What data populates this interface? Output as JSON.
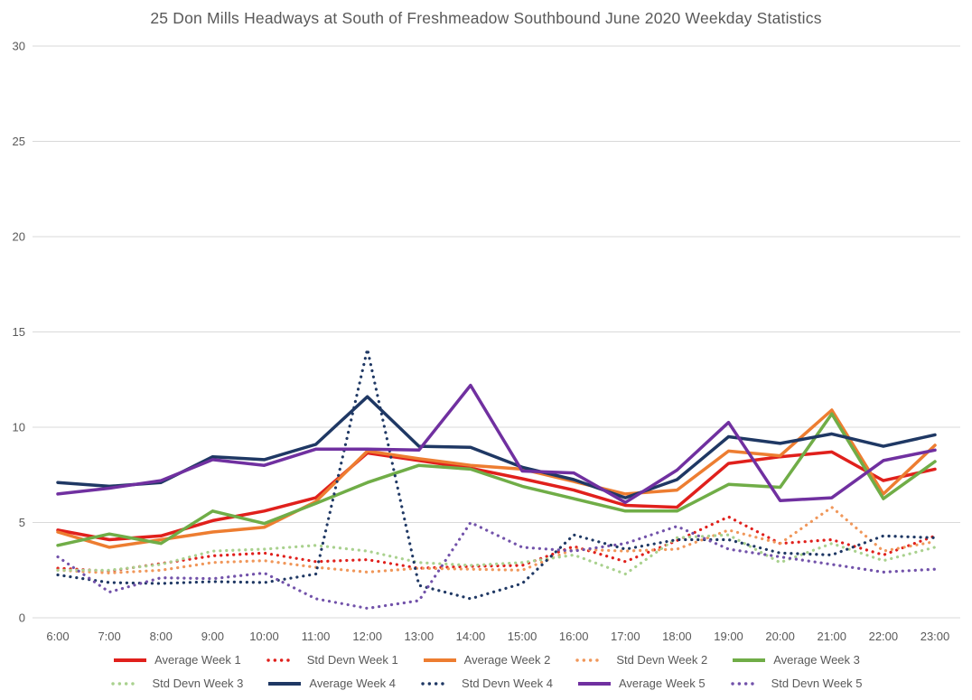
{
  "title": "25 Don Mills Headways at South of Freshmeadow Southbound June 2020 Weekday Statistics",
  "colors": {
    "background": "#ffffff",
    "gridline": "#d9d9d9",
    "axis_text": "#595959",
    "title_text": "#595959"
  },
  "chart_data": {
    "type": "line",
    "title": "25 Don Mills Headways at South of Freshmeadow Southbound June 2020 Weekday Statistics",
    "xlabel": "",
    "ylabel": "",
    "ylim": [
      0,
      30
    ],
    "y_ticks": [
      "0",
      "5",
      "10",
      "15",
      "20",
      "25",
      "30"
    ],
    "grid": "horizontal",
    "legend_position": "bottom",
    "categories": [
      "6:00",
      "7:00",
      "8:00",
      "9:00",
      "10:00",
      "11:00",
      "12:00",
      "13:00",
      "14:00",
      "15:00",
      "16:00",
      "17:00",
      "18:00",
      "19:00",
      "20:00",
      "21:00",
      "22:00",
      "23:00"
    ],
    "series": [
      {
        "name": "Average Week 1",
        "style": "solid",
        "color": "#e0201c",
        "values": [
          4.6,
          4.1,
          4.3,
          5.1,
          5.6,
          6.3,
          8.65,
          8.25,
          7.85,
          7.3,
          6.7,
          5.9,
          5.8,
          8.1,
          8.45,
          8.7,
          7.2,
          7.8
        ]
      },
      {
        "name": "Std Devn Week 1",
        "style": "dotted",
        "color": "#e0201c",
        "values": [
          2.6,
          2.45,
          2.85,
          3.25,
          3.4,
          2.95,
          3.05,
          2.6,
          2.7,
          2.75,
          3.75,
          2.95,
          4.05,
          5.3,
          3.9,
          4.1,
          3.3,
          4.3
        ]
      },
      {
        "name": "Average Week 2",
        "style": "solid",
        "color": "#ed7d31",
        "values": [
          4.5,
          3.7,
          4.1,
          4.5,
          4.75,
          6.1,
          8.75,
          8.35,
          8.0,
          7.8,
          7.15,
          6.5,
          6.7,
          8.75,
          8.5,
          10.9,
          6.5,
          9.05
        ]
      },
      {
        "name": "Std Devn Week 2",
        "style": "dotted",
        "color": "#f0975a",
        "values": [
          2.5,
          2.35,
          2.5,
          2.9,
          3.0,
          2.65,
          2.4,
          2.6,
          2.55,
          2.5,
          3.6,
          3.5,
          3.6,
          4.6,
          3.9,
          5.8,
          3.5,
          4.0
        ]
      },
      {
        "name": "Average Week 3",
        "style": "solid",
        "color": "#70ad47",
        "values": [
          3.8,
          4.4,
          3.9,
          5.6,
          4.95,
          6.0,
          7.1,
          8.0,
          7.8,
          6.9,
          6.25,
          5.6,
          5.6,
          7.0,
          6.85,
          10.7,
          6.25,
          8.2
        ]
      },
      {
        "name": "Std Devn Week 3",
        "style": "dotted",
        "color": "#a9d18e",
        "values": [
          2.5,
          2.5,
          2.8,
          3.5,
          3.6,
          3.8,
          3.5,
          2.9,
          2.75,
          2.9,
          3.3,
          2.3,
          4.2,
          4.35,
          2.9,
          3.9,
          3.0,
          3.7
        ]
      },
      {
        "name": "Average Week 4",
        "style": "solid",
        "color": "#1f3864",
        "values": [
          7.1,
          6.9,
          7.1,
          8.45,
          8.3,
          9.1,
          11.6,
          9.0,
          8.95,
          7.9,
          7.25,
          6.3,
          7.25,
          9.5,
          9.15,
          9.65,
          9.0,
          9.6
        ]
      },
      {
        "name": "Std Devn Week 4",
        "style": "dotted",
        "color": "#1f3864",
        "values": [
          2.25,
          1.85,
          1.8,
          1.9,
          1.85,
          2.3,
          14.1,
          1.7,
          1.0,
          1.8,
          4.35,
          3.6,
          4.1,
          4.1,
          3.4,
          3.3,
          4.3,
          4.2
        ]
      },
      {
        "name": "Average Week 5",
        "style": "solid",
        "color": "#7030a0",
        "values": [
          6.5,
          6.8,
          7.2,
          8.3,
          8.0,
          8.85,
          8.85,
          8.8,
          12.2,
          7.7,
          7.6,
          6.05,
          7.75,
          10.25,
          6.15,
          6.3,
          8.25,
          8.8
        ]
      },
      {
        "name": "Std Devn Week 5",
        "style": "dotted",
        "color": "#7252aa",
        "values": [
          3.2,
          1.35,
          2.1,
          2.05,
          2.35,
          1.0,
          0.5,
          0.9,
          5.0,
          3.7,
          3.5,
          3.9,
          4.8,
          3.6,
          3.2,
          2.8,
          2.4,
          2.55
        ]
      }
    ],
    "legend_rows": [
      [
        0,
        1,
        2,
        3,
        4
      ],
      [
        5,
        6,
        7,
        8,
        9
      ]
    ]
  }
}
